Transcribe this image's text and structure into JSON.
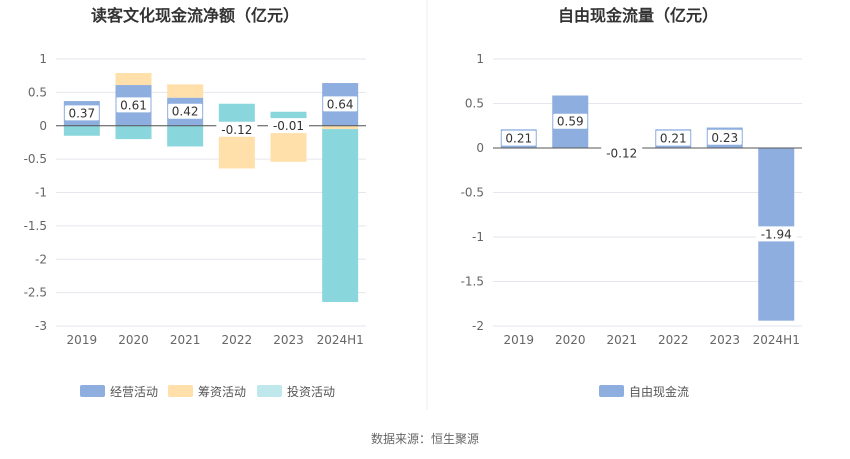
{
  "source": "数据来源：恒生聚源",
  "chart_data": [
    {
      "type": "bar",
      "stacked": true,
      "title": "读客文化现金流净额（亿元）",
      "categories": [
        "2019",
        "2020",
        "2021",
        "2022",
        "2023",
        "2024H1"
      ],
      "ylim": [
        -3,
        1
      ],
      "yticks": [
        "1",
        "0.5",
        "0",
        "-0.5",
        "-1",
        "-1.5",
        "-2",
        "-2.5",
        "-3"
      ],
      "series": [
        {
          "name": "经营活动",
          "color": "#8eaedf",
          "values": [
            0.37,
            0.61,
            0.42,
            -0.12,
            -0.01,
            0.64
          ]
        },
        {
          "name": "筹资活动",
          "color": "#ffdfaa",
          "values": [
            0.0,
            0.18,
            0.2,
            -0.52,
            -0.53,
            -0.05
          ]
        },
        {
          "name": "投资活动",
          "color": "#8ad6dd",
          "values": [
            -0.15,
            -0.2,
            -0.31,
            0.33,
            0.21,
            -2.59
          ]
        }
      ],
      "labels": [
        "0.37",
        "0.61",
        "0.42",
        "-0.12",
        "-0.01",
        "0.64"
      ],
      "legend_position": "bottom"
    },
    {
      "type": "bar",
      "title": "自由现金流量（亿元）",
      "categories": [
        "2019",
        "2020",
        "2021",
        "2022",
        "2023",
        "2024H1"
      ],
      "ylim": [
        -2,
        1
      ],
      "yticks": [
        "1",
        "0.5",
        "0",
        "-0.5",
        "-1",
        "-1.5",
        "-2"
      ],
      "series": [
        {
          "name": "自由现金流",
          "color": "#8eaedf",
          "values": [
            0.21,
            0.59,
            -0.12,
            0.21,
            0.23,
            -1.94
          ]
        }
      ],
      "labels": [
        "0.21",
        "0.59",
        "-0.12",
        "0.21",
        "0.23",
        "-1.94"
      ],
      "legend_position": "bottom"
    }
  ]
}
